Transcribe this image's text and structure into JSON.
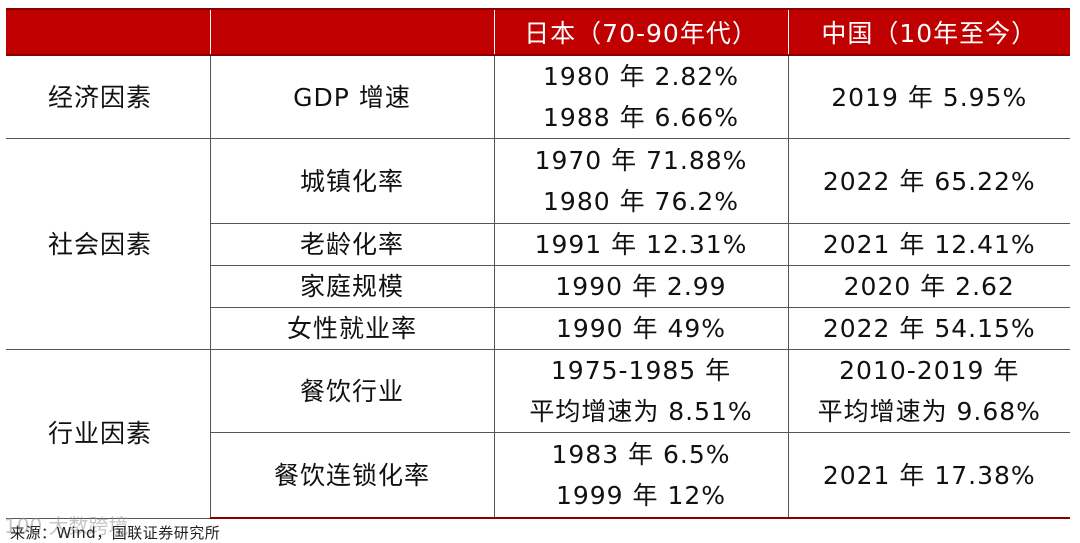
{
  "header": {
    "col1": "",
    "col2": "",
    "col3": "日本（70-90年代）",
    "col4": "中国（10年至今）"
  },
  "rows": {
    "economy": {
      "category": "经济因素",
      "indicator": "GDP 增速",
      "japan": [
        "1980 年 2.82%",
        "1988 年 6.66%"
      ],
      "china": "2019 年 5.95%"
    },
    "social": {
      "category": "社会因素",
      "urbanization": {
        "indicator": "城镇化率",
        "japan": [
          "1970 年 71.88%",
          "1980 年 76.2%"
        ],
        "china": "2022 年 65.22%"
      },
      "aging": {
        "indicator": "老龄化率",
        "japan": "1991 年 12.31%",
        "china": "2021 年 12.41%"
      },
      "family": {
        "indicator": "家庭规模",
        "japan": "1990 年 2.99",
        "china": "2020 年 2.62"
      },
      "female": {
        "indicator": "女性就业率",
        "japan": "1990 年 49%",
        "china": "2022 年 54.15%"
      }
    },
    "industry": {
      "category": "行业因素",
      "catering": {
        "indicator": "餐饮行业",
        "japan": [
          "1975-1985 年",
          "平均增速为 8.51%"
        ],
        "china": [
          "2010-2019 年",
          "平均增速为 9.68%"
        ]
      },
      "chain": {
        "indicator": "餐饮连锁化率",
        "japan": [
          "1983 年 6.5%",
          "1999 年 12%"
        ],
        "china": "2021 年 17.38%"
      }
    }
  },
  "source": "来源：Wind，国联证券研究所",
  "watermark": "100 大数跨境",
  "colors": {
    "header_bg": "#c00000",
    "header_text": "#ffffff"
  }
}
